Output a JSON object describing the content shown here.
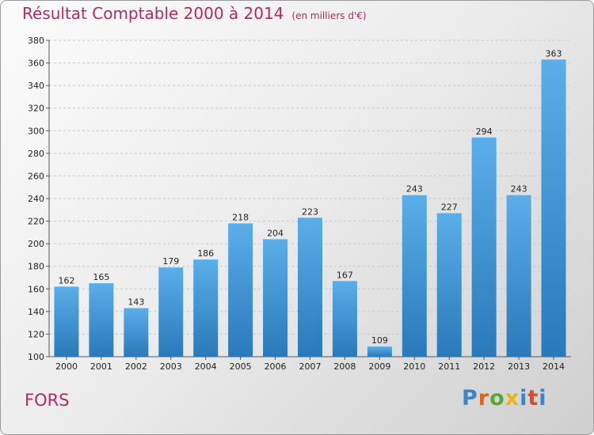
{
  "title": "Résultat Comptable 2000 à 2014",
  "unit": "(en milliers d'€)",
  "commune": "FORS",
  "logo": "Proxiti",
  "colors": {
    "bar_top": "#5aaee9",
    "bar_bottom": "#2a79ba",
    "title": "#b52a5d"
  },
  "chart_data": {
    "type": "bar",
    "title": "Résultat Comptable 2000 à 2014",
    "xlabel": "",
    "ylabel": "",
    "categories": [
      "2000",
      "2001",
      "2002",
      "2003",
      "2004",
      "2005",
      "2006",
      "2007",
      "2008",
      "2009",
      "2010",
      "2011",
      "2012",
      "2013",
      "2014"
    ],
    "values": [
      162,
      165,
      143,
      179,
      186,
      218,
      204,
      223,
      167,
      109,
      243,
      227,
      294,
      243,
      363
    ],
    "ylim": [
      100,
      380
    ],
    "yticks": [
      100,
      120,
      140,
      160,
      180,
      200,
      220,
      240,
      260,
      280,
      300,
      320,
      340,
      360,
      380
    ],
    "grid": true
  }
}
